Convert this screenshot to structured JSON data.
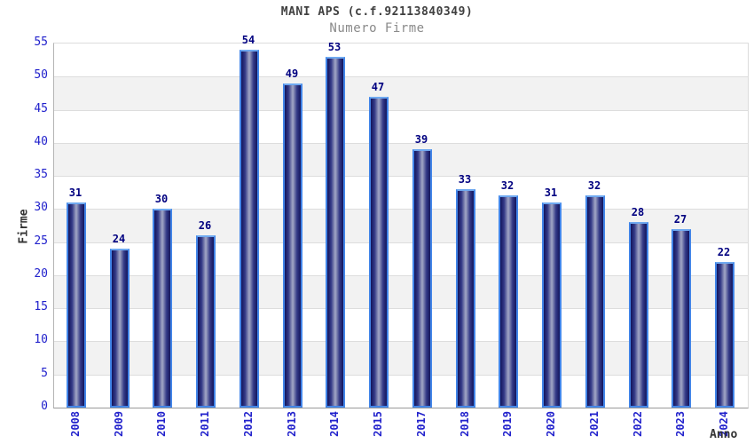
{
  "chart_data": {
    "type": "bar",
    "title": "MANI APS (c.f.92113840349)",
    "subtitle": "Numero Firme",
    "xlabel": "Anno",
    "ylabel": "Firme",
    "categories": [
      "2008",
      "2009",
      "2010",
      "2011",
      "2012",
      "2013",
      "2014",
      "2015",
      "2017",
      "2018",
      "2019",
      "2020",
      "2021",
      "2022",
      "2023",
      "2024"
    ],
    "values": [
      31,
      24,
      30,
      26,
      54,
      49,
      53,
      47,
      39,
      33,
      32,
      31,
      32,
      28,
      27,
      22
    ],
    "ylim": [
      0,
      55
    ],
    "ytick_step": 5,
    "yticks": [
      0,
      5,
      10,
      15,
      20,
      25,
      30,
      35,
      40,
      45,
      50,
      55
    ],
    "grid": "alternating-horizontal-bands",
    "legend": "none",
    "colors": {
      "background": "#ffffff",
      "title_text": "#404040",
      "subtitle_text": "#8a8a8a",
      "axis_label_text": "#333333",
      "tick_text": "#2222cc",
      "value_label_text": "#000080",
      "band_fill": "#f2f2f2",
      "gridline": "#dddddd",
      "axis_line": "#999999",
      "bar_border": "#4285e8",
      "bar_border_top": "#6fa9f0",
      "bar_edge_fill": "#13155c",
      "bar_mid_fill": "#343a87",
      "bar_center_fill": "#a3a8c6"
    }
  }
}
